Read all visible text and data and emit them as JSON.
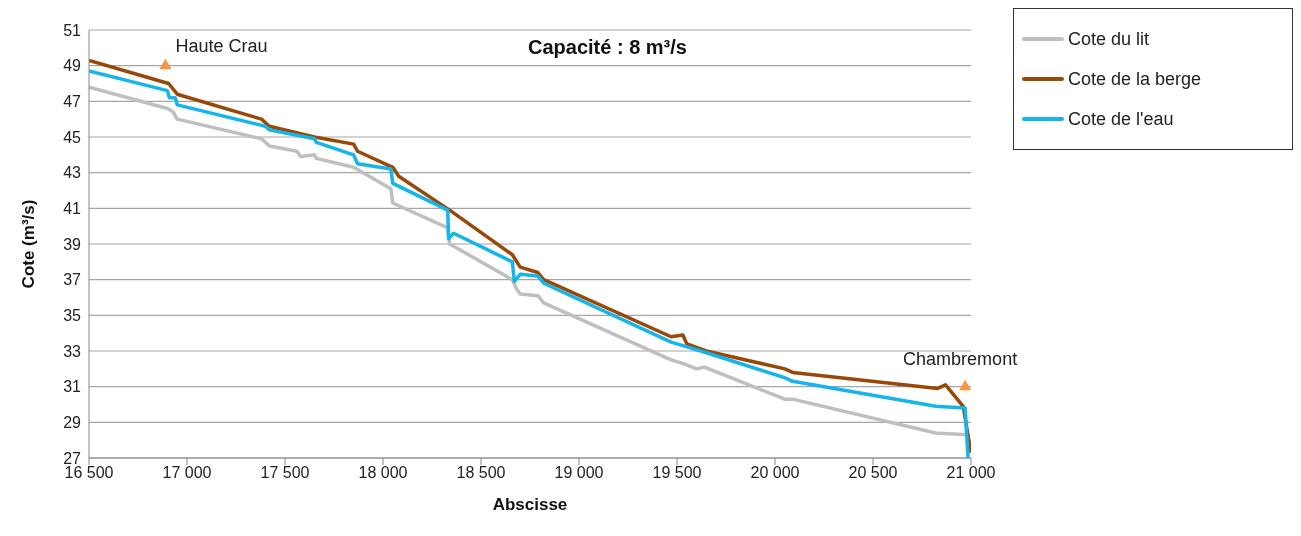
{
  "chart_data": {
    "type": "line",
    "title": "Capacité : 8 m³/s",
    "xlabel": "Abscisse",
    "ylabel": "Cote (m³/s)",
    "xlim": [
      16500,
      21000
    ],
    "xticks": [
      {
        "value": 16500,
        "label": "16 500"
      },
      {
        "value": 17000,
        "label": "17 000"
      },
      {
        "value": 17500,
        "label": "17 500"
      },
      {
        "value": 18000,
        "label": "18 000"
      },
      {
        "value": 18500,
        "label": "18 500"
      },
      {
        "value": 19000,
        "label": "19 000"
      },
      {
        "value": 19500,
        "label": "19 500"
      },
      {
        "value": 20000,
        "label": "20 000"
      },
      {
        "value": 20500,
        "label": "20 500"
      },
      {
        "value": 21000,
        "label": "21 000"
      }
    ],
    "ylim": [
      27,
      51
    ],
    "yticks": [
      27,
      29,
      31,
      33,
      35,
      37,
      39,
      41,
      43,
      45,
      47,
      49,
      51
    ],
    "grid": "y",
    "legend": "top right",
    "marker": "none",
    "line_style": "solid",
    "series": [
      {
        "name": "Cote du lit",
        "color": "#bfbfbf",
        "x": [
          16500,
          16900,
          16930,
          16950,
          17380,
          17420,
          17560,
          17580,
          17650,
          17660,
          17850,
          18040,
          18050,
          18330,
          18340,
          18660,
          18680,
          18700,
          18790,
          18820,
          19470,
          19530,
          19600,
          19640,
          20050,
          20090,
          20820,
          20980
        ],
        "values": [
          47.8,
          46.6,
          46.4,
          46.0,
          44.9,
          44.5,
          44.2,
          43.9,
          44.0,
          43.8,
          43.3,
          42.1,
          41.3,
          39.9,
          39.0,
          37.0,
          36.5,
          36.2,
          36.1,
          35.7,
          32.5,
          32.3,
          32.0,
          32.1,
          30.3,
          30.3,
          28.4,
          28.3
        ]
      },
      {
        "name": "Cote de la berge",
        "color": "#984807",
        "x": [
          16500,
          16906,
          16950,
          17380,
          17420,
          17650,
          17850,
          17870,
          18050,
          18080,
          18340,
          18660,
          18700,
          18790,
          18820,
          19470,
          19530,
          19550,
          19650,
          20050,
          20090,
          20830,
          20870,
          20960,
          21000
        ],
        "values": [
          49.3,
          48.0,
          47.4,
          46.0,
          45.6,
          45.0,
          44.6,
          44.2,
          43.3,
          42.8,
          40.9,
          38.4,
          37.7,
          37.4,
          37.0,
          33.8,
          33.9,
          33.4,
          33.0,
          32.0,
          31.8,
          30.9,
          31.1,
          29.9,
          27.3
        ]
      },
      {
        "name": "Cote de l'eau",
        "color": "#13b5ea",
        "x": [
          16500,
          16900,
          16910,
          16940,
          16950,
          17400,
          17420,
          17650,
          17660,
          17850,
          17870,
          18040,
          18050,
          18330,
          18335,
          18360,
          18660,
          18670,
          18700,
          18790,
          18820,
          19470,
          19530,
          19650,
          20050,
          20090,
          20820,
          20970,
          20985
        ],
        "values": [
          48.7,
          47.6,
          47.2,
          47.2,
          46.8,
          45.6,
          45.4,
          44.9,
          44.7,
          44.0,
          43.5,
          43.2,
          42.4,
          40.9,
          39.3,
          39.6,
          38.0,
          36.9,
          37.3,
          37.2,
          36.8,
          33.5,
          33.3,
          32.9,
          31.5,
          31.3,
          29.9,
          29.8,
          27.0
        ]
      },
      {
        "type": "scatter",
        "marker": "triangle",
        "color": "#f79646",
        "x": [
          16890,
          20970
        ],
        "values": [
          49.0,
          31.0
        ]
      }
    ],
    "annotations": [
      {
        "text": "Haute Crau",
        "x": 16890,
        "y": 49.0
      },
      {
        "text": "Chambremont",
        "x": 20970,
        "y": 31.0
      }
    ]
  }
}
